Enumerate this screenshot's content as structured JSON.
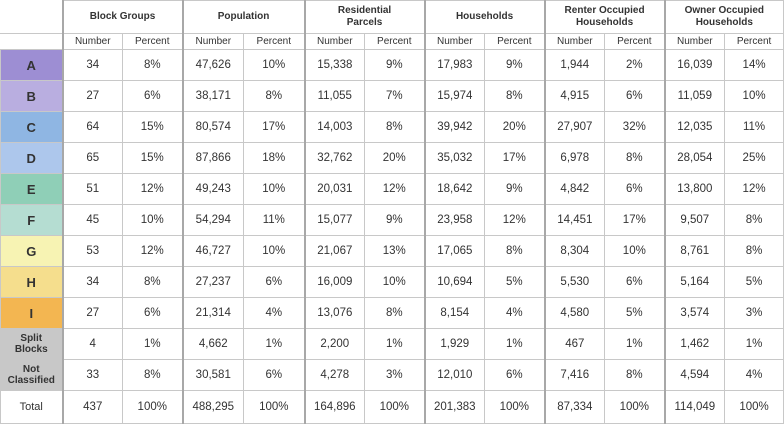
{
  "table": {
    "group_headers": [
      "Block Groups",
      "Population",
      "Residential\nParcels",
      "Households",
      "Renter Occupied\nHouseholds",
      "Owner Occupied\nHouseholds"
    ],
    "sub_headers": [
      "Number",
      "Percent"
    ],
    "rows": [
      {
        "label": "A",
        "color": "#9d8ed3",
        "values": [
          "34",
          "8%",
          "47,626",
          "10%",
          "15,338",
          "9%",
          "17,983",
          "9%",
          "1,944",
          "2%",
          "16,039",
          "14%"
        ]
      },
      {
        "label": "B",
        "color": "#b9aee0",
        "values": [
          "27",
          "6%",
          "38,171",
          "8%",
          "11,055",
          "7%",
          "15,974",
          "8%",
          "4,915",
          "6%",
          "11,059",
          "10%"
        ]
      },
      {
        "label": "C",
        "color": "#8fb6e3",
        "values": [
          "64",
          "15%",
          "80,574",
          "17%",
          "14,003",
          "8%",
          "39,942",
          "20%",
          "27,907",
          "32%",
          "12,035",
          "11%"
        ]
      },
      {
        "label": "D",
        "color": "#adc7ec",
        "values": [
          "65",
          "15%",
          "87,866",
          "18%",
          "32,762",
          "20%",
          "35,032",
          "17%",
          "6,978",
          "8%",
          "28,054",
          "25%"
        ]
      },
      {
        "label": "E",
        "color": "#8fcfb7",
        "values": [
          "51",
          "12%",
          "49,243",
          "10%",
          "20,031",
          "12%",
          "18,642",
          "9%",
          "4,842",
          "6%",
          "13,800",
          "12%"
        ]
      },
      {
        "label": "F",
        "color": "#b5ddd2",
        "values": [
          "45",
          "10%",
          "54,294",
          "11%",
          "15,077",
          "9%",
          "23,958",
          "12%",
          "14,451",
          "17%",
          "9,507",
          "8%"
        ]
      },
      {
        "label": "G",
        "color": "#f7f3b3",
        "values": [
          "53",
          "12%",
          "46,727",
          "10%",
          "21,067",
          "13%",
          "17,065",
          "8%",
          "8,304",
          "10%",
          "8,761",
          "8%"
        ]
      },
      {
        "label": "H",
        "color": "#f5de8d",
        "values": [
          "34",
          "8%",
          "27,237",
          "6%",
          "16,009",
          "10%",
          "10,694",
          "5%",
          "5,530",
          "6%",
          "5,164",
          "5%"
        ]
      },
      {
        "label": "I",
        "color": "#f3b651",
        "values": [
          "27",
          "6%",
          "21,314",
          "4%",
          "13,076",
          "8%",
          "8,154",
          "4%",
          "4,580",
          "5%",
          "3,574",
          "3%"
        ]
      },
      {
        "label": "Split\nBlocks",
        "color": "#c8c8c8",
        "values": [
          "4",
          "1%",
          "4,662",
          "1%",
          "2,200",
          "1%",
          "1,929",
          "1%",
          "467",
          "1%",
          "1,462",
          "1%"
        ]
      },
      {
        "label": "Not\nClassified",
        "color": "#c8c8c8",
        "values": [
          "33",
          "8%",
          "30,581",
          "6%",
          "4,278",
          "3%",
          "12,010",
          "6%",
          "7,416",
          "8%",
          "4,594",
          "4%"
        ]
      }
    ],
    "total": {
      "label": "Total",
      "values": [
        "437",
        "100%",
        "488,295",
        "100%",
        "164,896",
        "100%",
        "201,383",
        "100%",
        "87,334",
        "100%",
        "114,049",
        "100%"
      ]
    }
  }
}
